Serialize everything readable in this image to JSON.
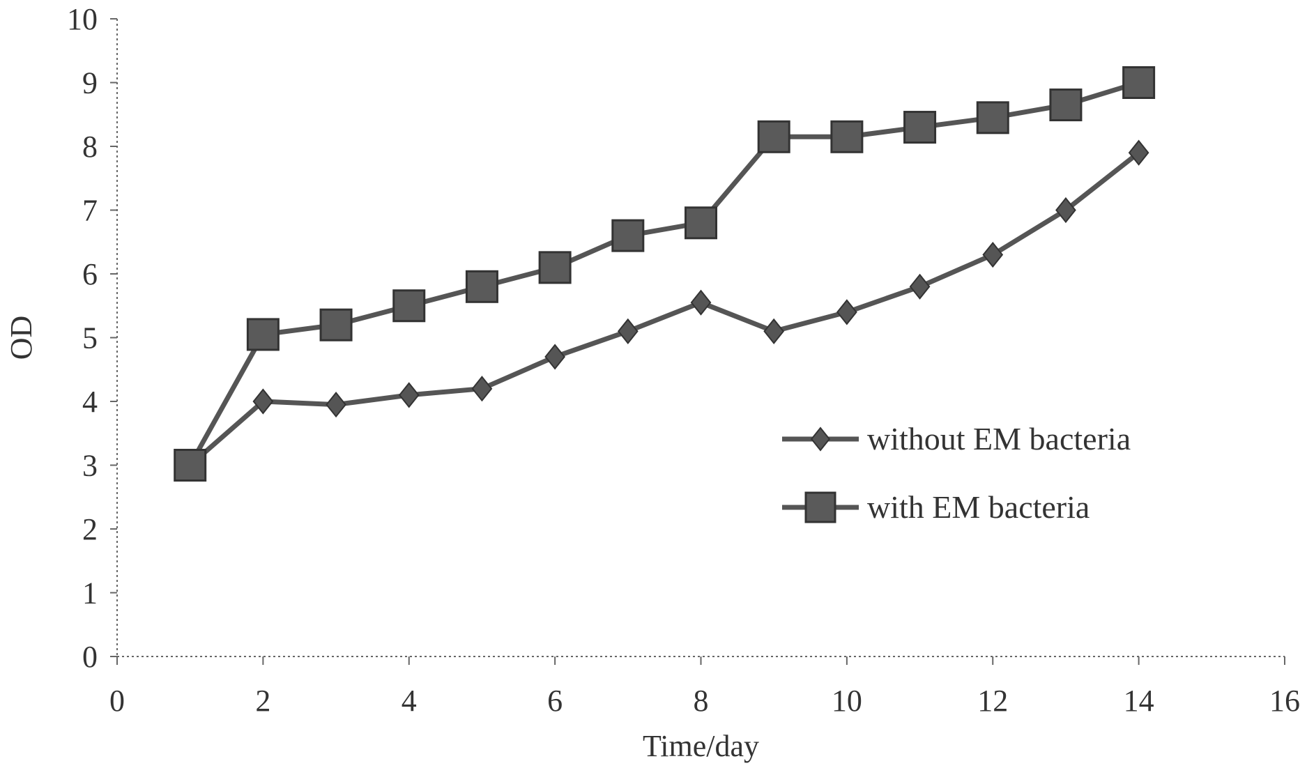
{
  "chart_data": {
    "type": "line",
    "xlabel": "Time/day",
    "ylabel": "OD",
    "xlim": [
      0,
      16
    ],
    "ylim": [
      0,
      10
    ],
    "x_ticks": [
      0,
      2,
      4,
      6,
      8,
      10,
      12,
      14,
      16
    ],
    "y_ticks": [
      0,
      1,
      2,
      3,
      4,
      5,
      6,
      7,
      8,
      9,
      10
    ],
    "grid": false,
    "legend_position": "right-center",
    "series": [
      {
        "name": "without EM bacteria",
        "marker": "diamond",
        "color": "#555555",
        "x": [
          1,
          2,
          3,
          4,
          5,
          6,
          7,
          8,
          9,
          10,
          11,
          12,
          13,
          14
        ],
        "y": [
          3.0,
          4.0,
          3.95,
          4.1,
          4.2,
          4.7,
          5.1,
          5.55,
          5.1,
          5.4,
          5.8,
          6.3,
          7.0,
          7.9
        ]
      },
      {
        "name": "with EM bacteria",
        "marker": "square",
        "color": "#5a5a5a",
        "x": [
          1,
          2,
          3,
          4,
          5,
          6,
          7,
          8,
          9,
          10,
          11,
          12,
          13,
          14
        ],
        "y": [
          3.0,
          5.05,
          5.2,
          5.5,
          5.8,
          6.1,
          6.6,
          6.8,
          8.15,
          8.15,
          8.3,
          8.45,
          8.65,
          9.0
        ]
      }
    ]
  }
}
